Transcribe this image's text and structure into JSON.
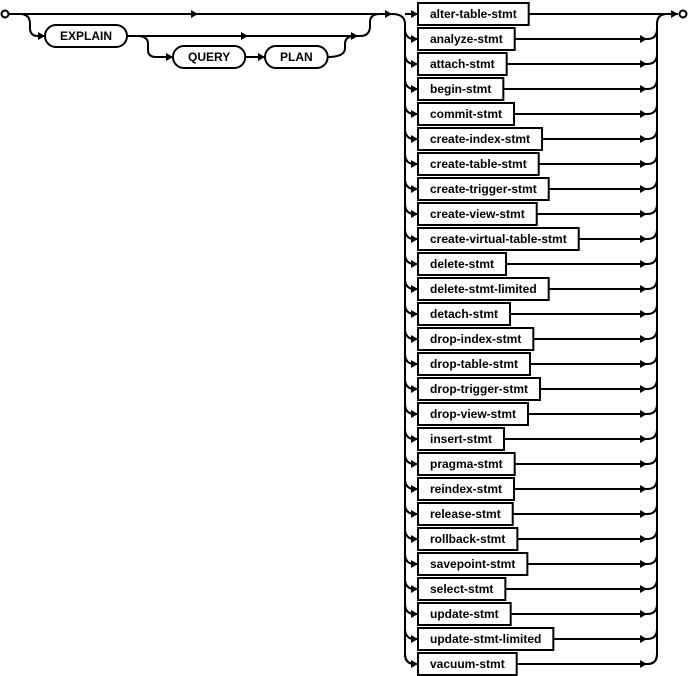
{
  "keywords": {
    "explain": "EXPLAIN",
    "query": "QUERY",
    "plan": "PLAN"
  },
  "statements": [
    "alter-table-stmt",
    "analyze-stmt",
    "attach-stmt",
    "begin-stmt",
    "commit-stmt",
    "create-index-stmt",
    "create-table-stmt",
    "create-trigger-stmt",
    "create-view-stmt",
    "create-virtual-table-stmt",
    "delete-stmt",
    "delete-stmt-limited",
    "detach-stmt",
    "drop-index-stmt",
    "drop-table-stmt",
    "drop-trigger-stmt",
    "drop-view-stmt",
    "insert-stmt",
    "pragma-stmt",
    "reindex-stmt",
    "release-stmt",
    "rollback-stmt",
    "savepoint-stmt",
    "select-stmt",
    "update-stmt",
    "update-stmt-limited",
    "vacuum-stmt"
  ]
}
